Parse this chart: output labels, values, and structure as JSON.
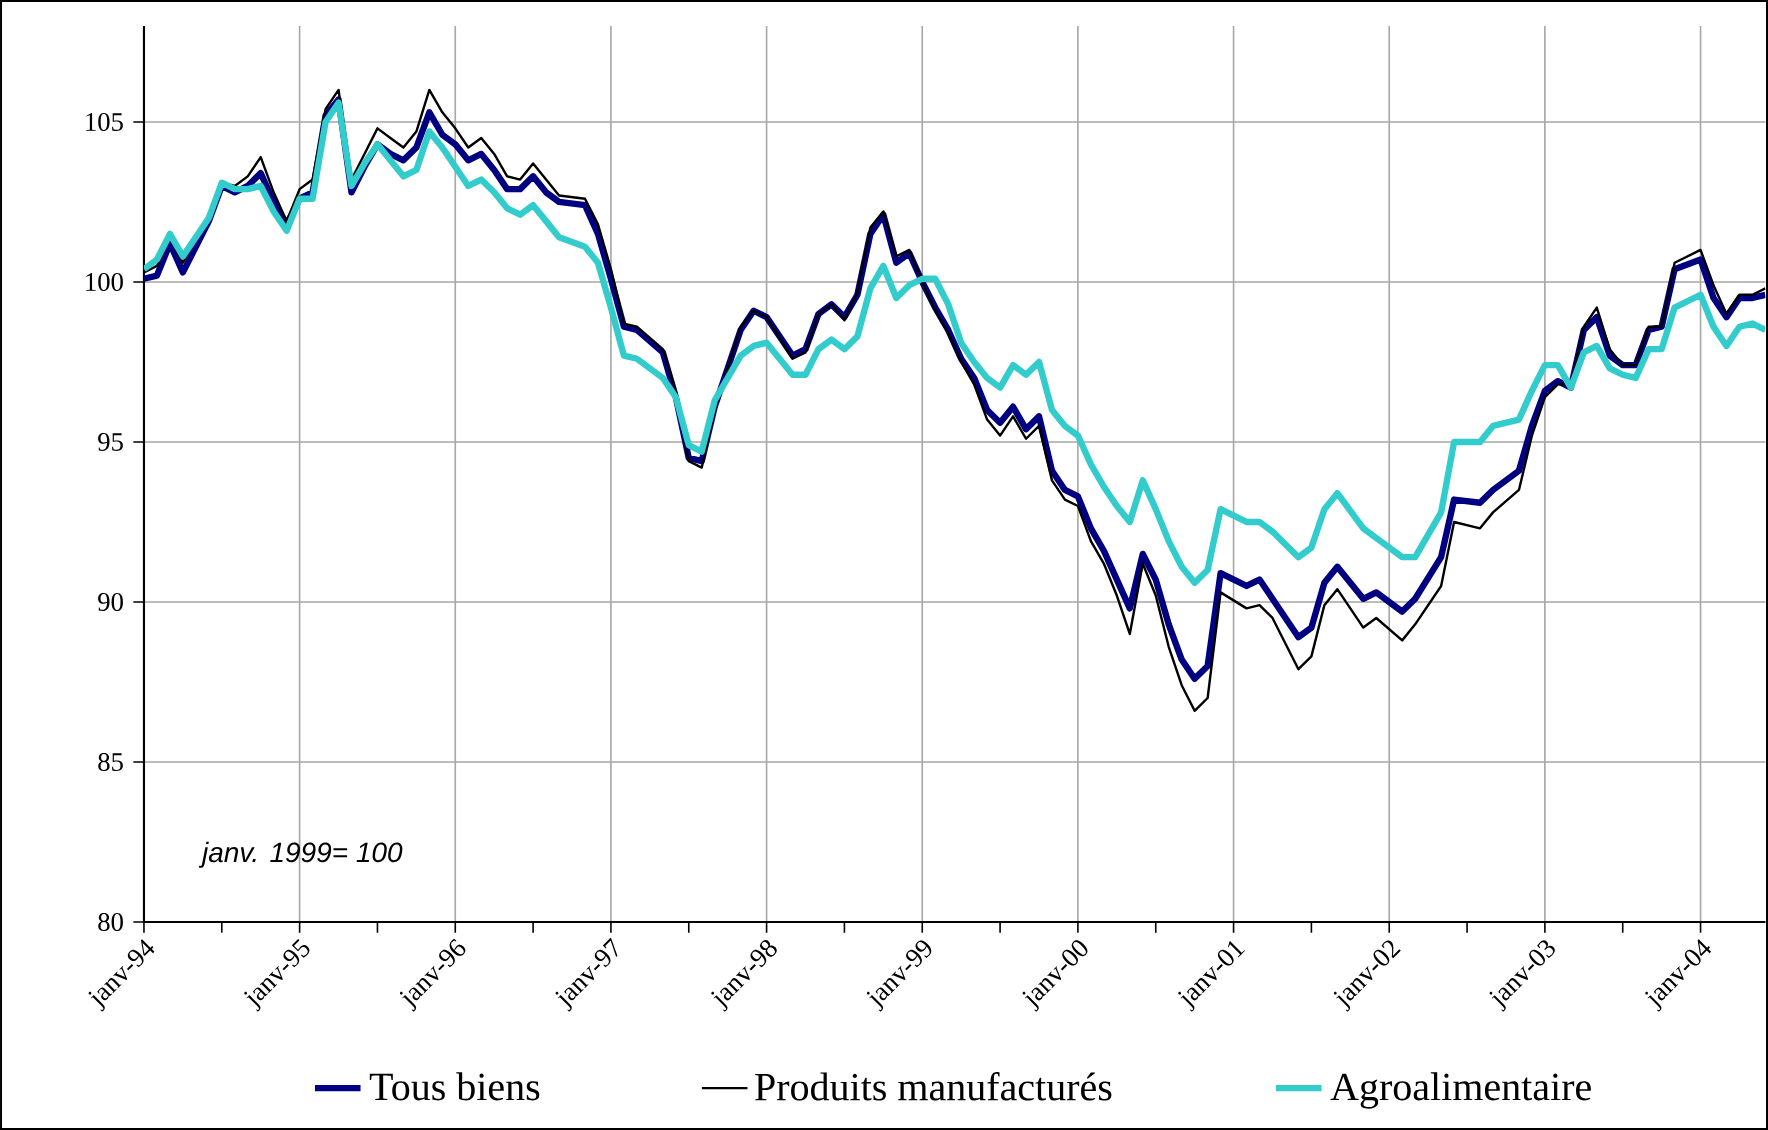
{
  "chart_data": {
    "type": "line",
    "x": [
      "1994-01",
      "1994-02",
      "1994-03",
      "1994-04",
      "1994-06",
      "1994-07",
      "1994-08",
      "1994-09",
      "1994-10",
      "1994-11",
      "1994-12",
      "1995-01",
      "1995-02",
      "1995-03",
      "1995-04",
      "1995-05",
      "1995-06",
      "1995-07",
      "1995-08",
      "1995-09",
      "1995-10",
      "1995-11",
      "1995-12",
      "1996-01",
      "1996-02",
      "1996-03",
      "1996-04",
      "1996-05",
      "1996-06",
      "1996-07",
      "1996-08",
      "1996-09",
      "1996-11",
      "1996-12",
      "1997-01",
      "1997-02",
      "1997-03",
      "1997-05",
      "1997-06",
      "1997-07",
      "1997-08",
      "1997-09",
      "1997-11",
      "1997-12",
      "1998-01",
      "1998-03",
      "1998-04",
      "1998-05",
      "1998-06",
      "1998-07",
      "1998-08",
      "1998-09",
      "1998-10",
      "1998-11",
      "1998-12",
      "1999-01",
      "1999-02",
      "1999-03",
      "1999-04",
      "1999-05",
      "1999-06",
      "1999-07",
      "1999-08",
      "1999-09",
      "1999-10",
      "1999-11",
      "1999-12",
      "2000-01",
      "2000-02",
      "2000-03",
      "2000-04",
      "2000-05",
      "2000-06",
      "2000-07",
      "2000-08",
      "2000-09",
      "2000-10",
      "2000-11",
      "2000-12",
      "2001-02",
      "2001-03",
      "2001-04",
      "2001-06",
      "2001-07",
      "2001-08",
      "2001-09",
      "2001-11",
      "2001-12",
      "2002-02",
      "2002-03",
      "2002-05",
      "2002-06",
      "2002-08",
      "2002-09",
      "2002-11",
      "2002-12",
      "2003-01",
      "2003-02",
      "2003-03",
      "2003-04",
      "2003-05",
      "2003-06",
      "2003-07",
      "2003-08",
      "2003-09",
      "2003-10",
      "2003-11",
      "2004-01",
      "2004-02",
      "2004-03",
      "2004-04",
      "2004-05",
      "2004-06"
    ],
    "series": [
      {
        "name": "Tous biens",
        "color": "#000080",
        "values": [
          100.1,
          100.2,
          101.2,
          100.3,
          101.9,
          103.0,
          102.8,
          103.0,
          103.4,
          102.5,
          101.8,
          102.6,
          102.8,
          105.2,
          105.7,
          102.8,
          103.6,
          104.3,
          104.0,
          103.8,
          104.2,
          105.3,
          104.6,
          104.3,
          103.8,
          104.0,
          103.5,
          102.9,
          102.9,
          103.3,
          102.8,
          102.5,
          102.4,
          101.5,
          100.1,
          98.6,
          98.5,
          97.8,
          96.4,
          94.5,
          94.4,
          96.1,
          98.5,
          99.1,
          98.9,
          97.7,
          97.9,
          99.0,
          99.3,
          98.9,
          99.6,
          101.5,
          102.1,
          100.6,
          100.9,
          100.0,
          99.2,
          98.5,
          97.6,
          97.0,
          96.0,
          95.6,
          96.1,
          95.4,
          95.8,
          94.1,
          93.5,
          93.3,
          92.3,
          91.6,
          90.7,
          89.8,
          91.5,
          90.7,
          89.3,
          88.2,
          87.6,
          88.0,
          90.9,
          90.5,
          90.7,
          90.1,
          88.9,
          89.2,
          90.6,
          91.1,
          90.1,
          90.3,
          89.7,
          90.1,
          91.4,
          93.2,
          93.1,
          93.5,
          94.1,
          95.5,
          96.6,
          96.9,
          96.7,
          98.5,
          98.9,
          97.7,
          97.4,
          97.4,
          98.5,
          98.6,
          100.4,
          100.7,
          99.5,
          98.9,
          99.5,
          99.5,
          99.6
        ]
      },
      {
        "name": "Produits manufacturés",
        "color": "#000000",
        "values": [
          100.3,
          100.5,
          101.4,
          100.6,
          102.1,
          103.1,
          103.0,
          103.3,
          103.9,
          102.8,
          101.9,
          102.9,
          103.2,
          105.4,
          106.0,
          103.2,
          104.0,
          104.8,
          104.5,
          104.2,
          104.7,
          106.0,
          105.3,
          104.8,
          104.2,
          104.5,
          104.0,
          103.3,
          103.2,
          103.7,
          103.2,
          102.7,
          102.6,
          101.8,
          100.4,
          98.7,
          98.6,
          97.9,
          96.6,
          94.4,
          94.2,
          96.0,
          98.6,
          99.1,
          98.9,
          97.6,
          97.8,
          99.0,
          99.3,
          98.8,
          99.7,
          101.7,
          102.2,
          100.8,
          101.0,
          100.0,
          99.1,
          98.4,
          97.5,
          96.8,
          95.7,
          95.2,
          95.8,
          95.1,
          95.5,
          93.8,
          93.2,
          93.0,
          91.9,
          91.2,
          90.2,
          89.0,
          91.2,
          90.2,
          88.6,
          87.4,
          86.6,
          87.0,
          90.3,
          89.8,
          89.9,
          89.5,
          87.9,
          88.3,
          89.9,
          90.4,
          89.2,
          89.5,
          88.8,
          89.3,
          90.5,
          92.5,
          92.3,
          92.8,
          93.5,
          95.2,
          96.4,
          96.8,
          96.8,
          98.6,
          99.2,
          97.9,
          97.4,
          97.4,
          98.6,
          98.6,
          100.6,
          101.0,
          99.9,
          99.0,
          99.6,
          99.6,
          99.8
        ]
      },
      {
        "name": "Agroalimentaire",
        "color": "#33cccc",
        "values": [
          100.4,
          100.7,
          101.5,
          100.8,
          102.0,
          103.1,
          102.9,
          102.9,
          103.0,
          102.2,
          101.6,
          102.6,
          102.6,
          105.0,
          105.6,
          103.0,
          103.7,
          104.3,
          103.8,
          103.3,
          103.5,
          104.7,
          104.2,
          103.6,
          103.0,
          103.2,
          102.8,
          102.3,
          102.1,
          102.4,
          101.9,
          101.4,
          101.1,
          100.6,
          99.2,
          97.7,
          97.6,
          97.0,
          96.4,
          94.9,
          94.7,
          96.3,
          97.7,
          98.0,
          98.1,
          97.1,
          97.1,
          97.9,
          98.2,
          97.9,
          98.3,
          99.8,
          100.5,
          99.5,
          99.9,
          100.1,
          100.1,
          99.3,
          98.1,
          97.5,
          97.0,
          96.7,
          97.4,
          97.1,
          97.5,
          96.0,
          95.5,
          95.2,
          94.3,
          93.6,
          93.0,
          92.5,
          93.8,
          92.9,
          91.9,
          91.1,
          90.6,
          91.0,
          92.9,
          92.5,
          92.5,
          92.2,
          91.4,
          91.7,
          92.9,
          93.4,
          92.3,
          92.0,
          91.4,
          91.4,
          92.8,
          95.0,
          95.0,
          95.5,
          95.7,
          96.6,
          97.4,
          97.4,
          96.7,
          97.8,
          98.0,
          97.3,
          97.1,
          97.0,
          97.9,
          97.9,
          99.2,
          99.6,
          98.6,
          98.0,
          98.6,
          98.7,
          98.5
        ]
      }
    ],
    "xlim": [
      "1994-01",
      "2004-06"
    ],
    "xticks": [
      {
        "value": "1994-01",
        "label": "janv-94"
      },
      {
        "value": "1995-01",
        "label": "janv-95"
      },
      {
        "value": "1996-01",
        "label": "janv-96"
      },
      {
        "value": "1997-01",
        "label": "janv-97"
      },
      {
        "value": "1998-01",
        "label": "janv-98"
      },
      {
        "value": "1999-01",
        "label": "janv-99"
      },
      {
        "value": "2000-01",
        "label": "janv-00"
      },
      {
        "value": "2001-01",
        "label": "janv-01"
      },
      {
        "value": "2002-01",
        "label": "janv-02"
      },
      {
        "value": "2003-01",
        "label": "janv-03"
      },
      {
        "value": "2004-01",
        "label": "janv-04"
      }
    ],
    "ylim": [
      80,
      108
    ],
    "yticks": [
      80,
      85,
      90,
      95,
      100,
      105
    ],
    "grid": true,
    "legend": "bottom",
    "marker": "none",
    "line_style": "solid",
    "annotations": [
      "janv. 1999= 100"
    ]
  }
}
